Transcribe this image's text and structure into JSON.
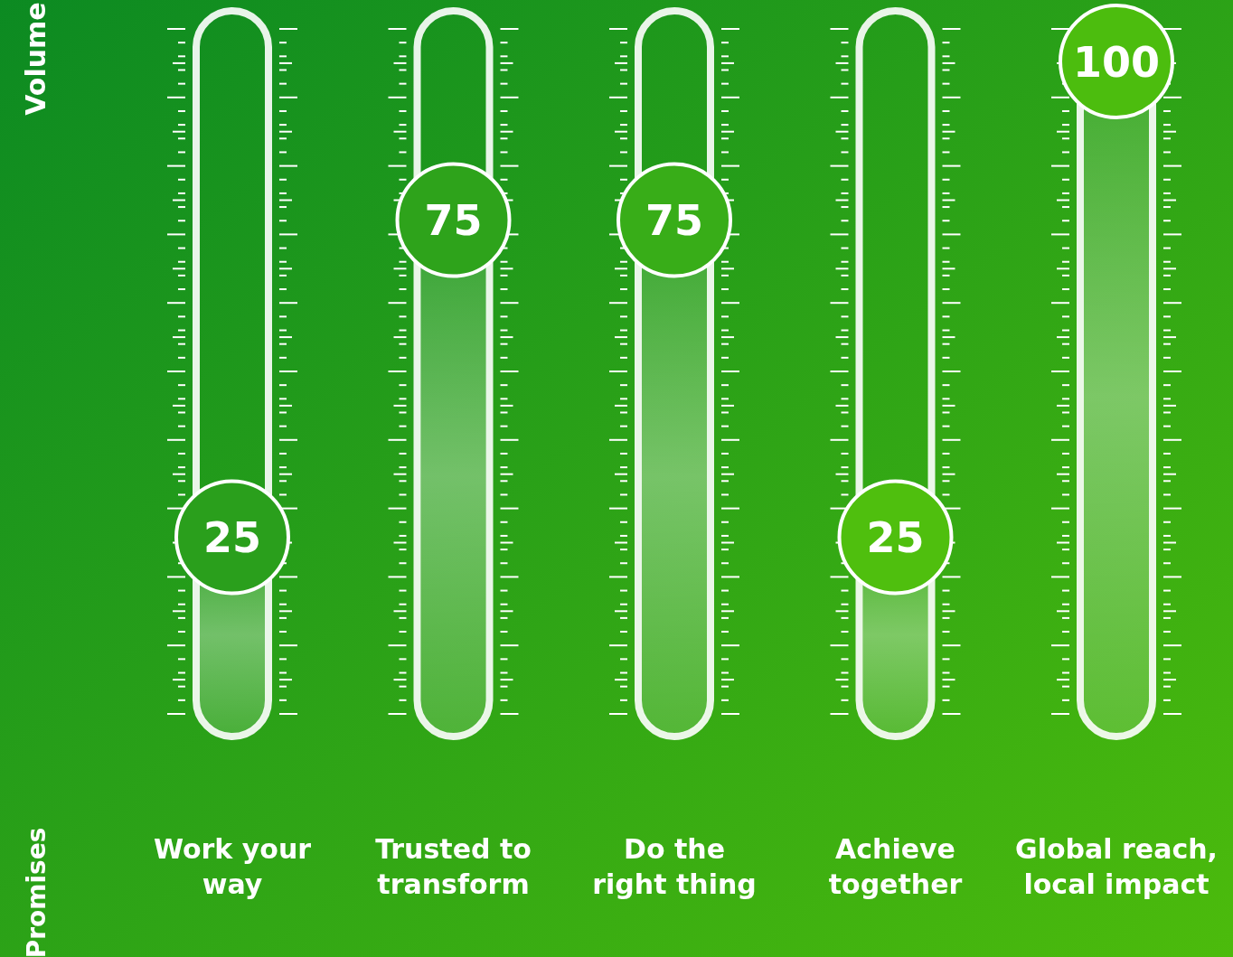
{
  "chart_data": {
    "type": "lollipop",
    "ylabel": "Volume",
    "categories": [
      "Work your way",
      "Trusted to transform",
      "Do the right thing",
      "Achieve together",
      "Global reach, local impact"
    ],
    "values": [
      25,
      75,
      75,
      25,
      100
    ],
    "colors": [
      "#2a9f1c",
      "#2ea31b",
      "#38ad18",
      "#4fbf0e",
      "#4cbd0e"
    ],
    "data_labels": true,
    "annotations": [
      "Promises"
    ]
  }
}
